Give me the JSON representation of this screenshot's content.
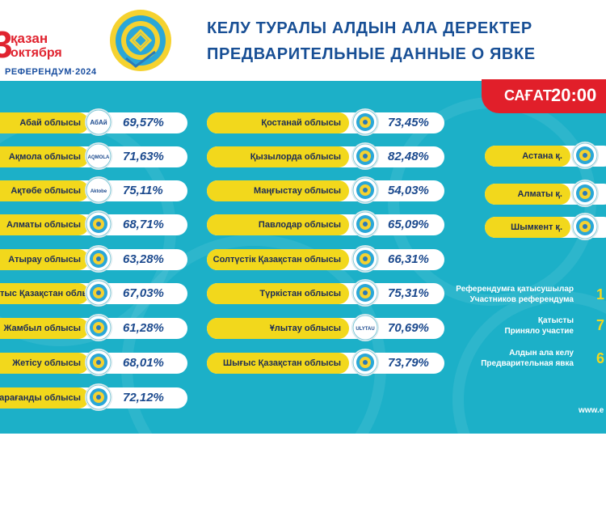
{
  "header": {
    "date_number": "3",
    "date_line1": "қазан",
    "date_line2": "октября",
    "referendum": "РЕФЕРЕНДУМ·2024",
    "title_kz": "КЕЛУ ТУРАЛЫ АЛДЫН АЛА ДЕРЕКТЕР",
    "title_ru": "ПРЕДВАРИТЕЛЬНЫЕ ДАННЫЕ О ЯВКЕ",
    "time_label": "САҒАТ",
    "time_value": "20:00"
  },
  "regions_left": [
    {
      "name": "Абай облысы",
      "value": "69,57%",
      "icon": "abai-emblem-icon",
      "icon_text": "АбАй"
    },
    {
      "name": "Ақмола облысы",
      "value": "71,63%",
      "icon": "akmola-emblem-icon",
      "icon_text": "AQMOLA"
    },
    {
      "name": "Ақтөбе облысы",
      "value": "75,11%",
      "icon": "aktobe-emblem-icon",
      "icon_text": "Aktobe"
    },
    {
      "name": "Алматы облысы",
      "value": "68,71%",
      "icon": "almaty-region-emblem-icon",
      "icon_text": ""
    },
    {
      "name": "Атырау облысы",
      "value": "63,28%",
      "icon": "atyrau-emblem-icon",
      "icon_text": ""
    },
    {
      "name": "Батыс Қазақстан облысы",
      "value": "67,03%",
      "icon": "west-kazakhstan-emblem-icon",
      "icon_text": ""
    },
    {
      "name": "Жамбыл облысы",
      "value": "61,28%",
      "icon": "zhambyl-emblem-icon",
      "icon_text": ""
    },
    {
      "name": "Жетісу облысы",
      "value": "68,01%",
      "icon": "zhetisu-emblem-icon",
      "icon_text": ""
    },
    {
      "name": "Қарағанды облысы",
      "value": "72,12%",
      "icon": "karaganda-emblem-icon",
      "icon_text": ""
    }
  ],
  "regions_mid": [
    {
      "name": "Қостанай облысы",
      "value": "73,45%",
      "icon": "kostanay-emblem-icon",
      "icon_text": ""
    },
    {
      "name": "Қызылорда облысы",
      "value": "82,48%",
      "icon": "kyzylorda-emblem-icon",
      "icon_text": ""
    },
    {
      "name": "Маңғыстау облысы",
      "value": "54,03%",
      "icon": "mangystau-emblem-icon",
      "icon_text": ""
    },
    {
      "name": "Павлодар облысы",
      "value": "65,09%",
      "icon": "pavlodar-emblem-icon",
      "icon_text": ""
    },
    {
      "name": "Солтүстік Қазақстан облысы",
      "value": "66,31%",
      "icon": "north-kazakhstan-emblem-icon",
      "icon_text": ""
    },
    {
      "name": "Түркістан облысы",
      "value": "75,31%",
      "icon": "turkistan-emblem-icon",
      "icon_text": ""
    },
    {
      "name": "Ұлытау облысы",
      "value": "70,69%",
      "icon": "ulytau-emblem-icon",
      "icon_text": "ULYTAU"
    },
    {
      "name": "Шығыс Қазақстан облысы",
      "value": "73,79%",
      "icon": "east-kazakhstan-emblem-icon",
      "icon_text": ""
    }
  ],
  "cities": [
    {
      "name": "Астана қ.",
      "icon": "astana-emblem-icon"
    },
    {
      "name": "Алматы қ.",
      "icon": "almaty-city-emblem-icon"
    },
    {
      "name": "Шымкент қ.",
      "icon": "shymkent-emblem-icon"
    }
  ],
  "stats": [
    {
      "label_kz": "Референдумға қатысушылар",
      "label_ru": "Участников референдума",
      "value": "1"
    },
    {
      "label_kz": "Қатысты",
      "label_ru": "Приняло участие",
      "value": "7"
    },
    {
      "label_kz": "Алдын ала келу",
      "label_ru": "Предварительная явка",
      "value": "6"
    }
  ],
  "website": "www.e",
  "colors": {
    "teal": "#1cb0c8",
    "yellow": "#f2d81c",
    "red": "#e11f2a",
    "navy": "#184f95"
  }
}
